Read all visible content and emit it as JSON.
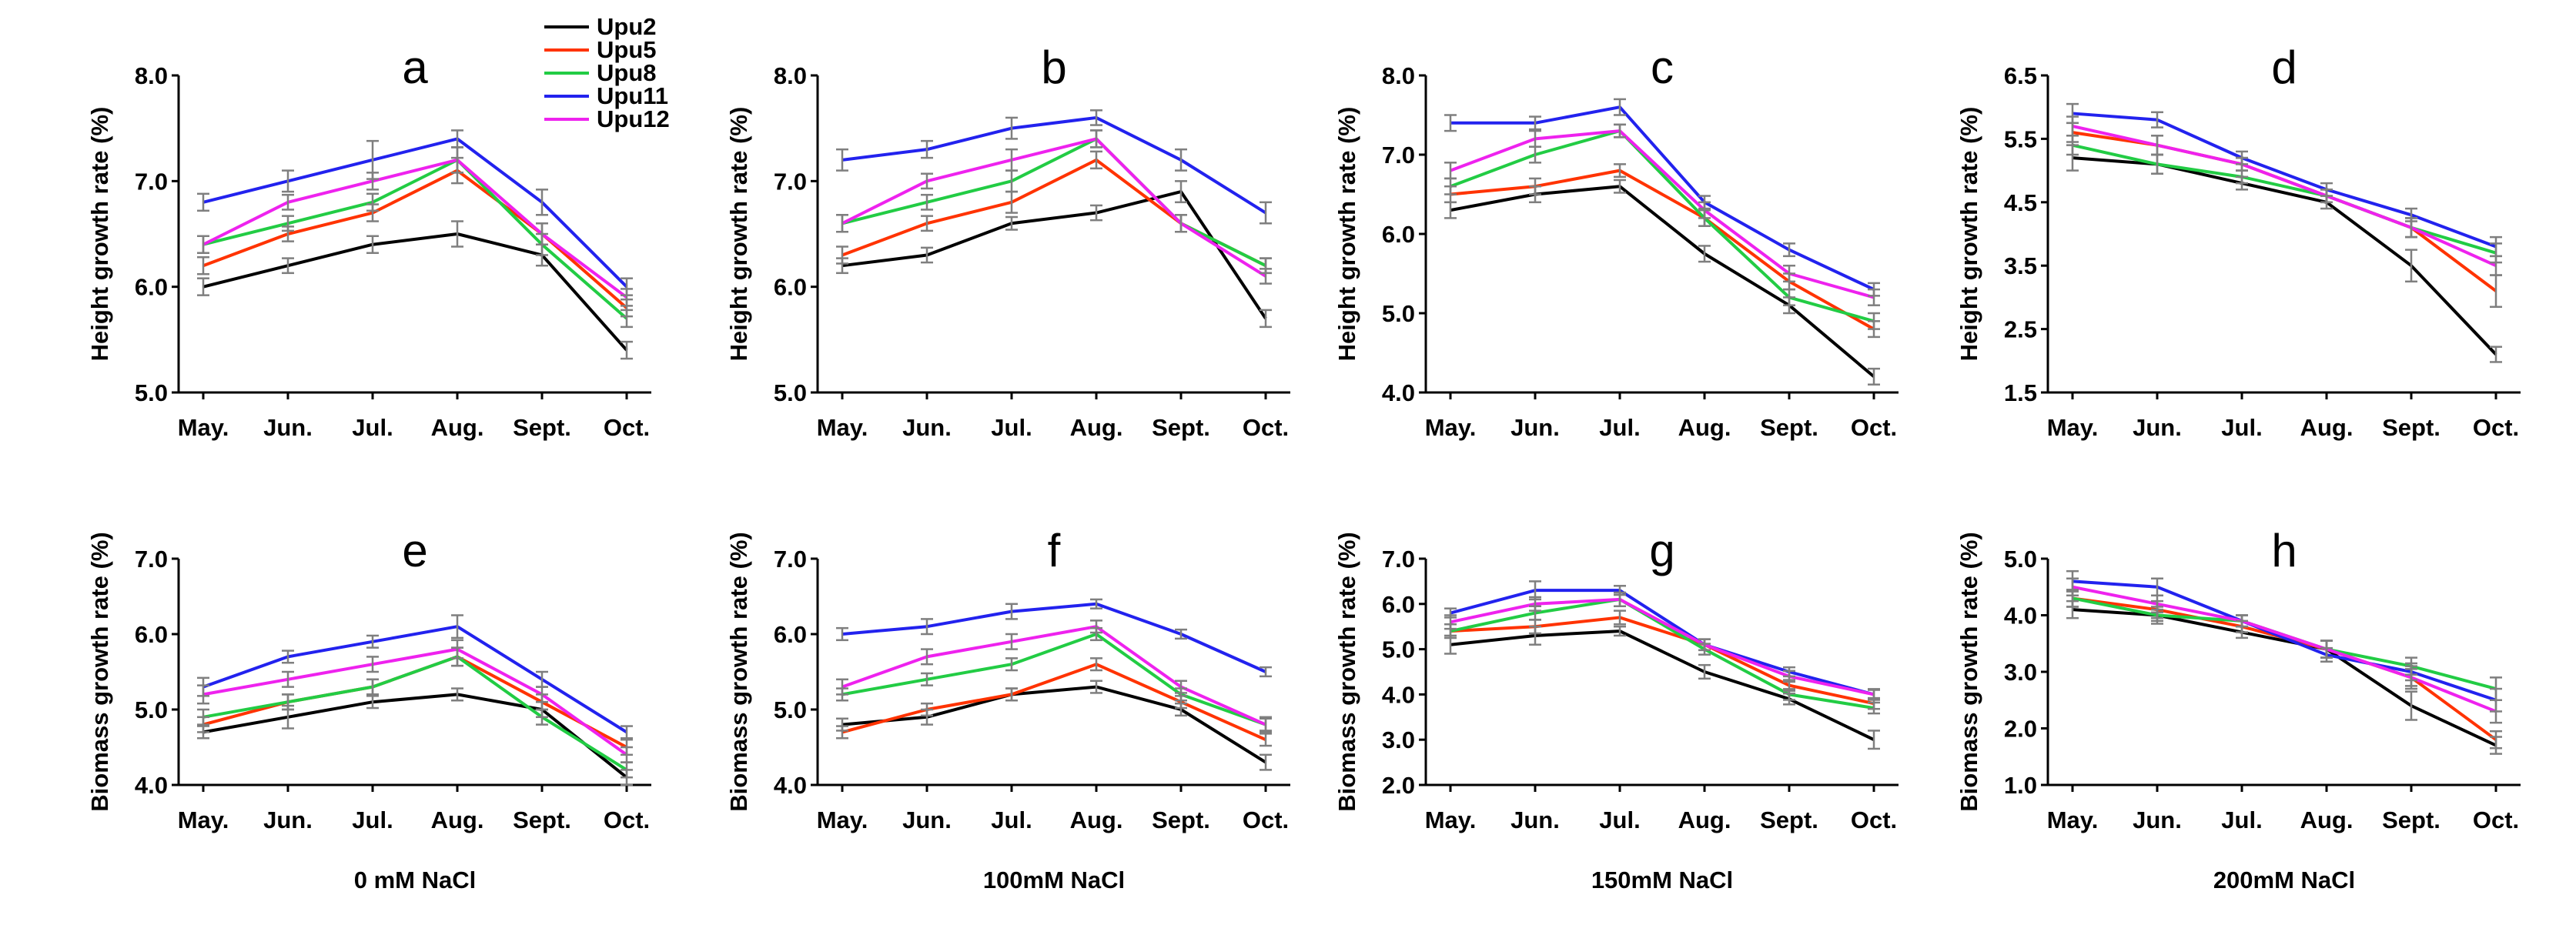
{
  "colors": {
    "Upu2": "#000000",
    "Upu5": "#ff3300",
    "Upu8": "#22cc44",
    "Upu11": "#2222ee",
    "Upu12": "#ee22ee",
    "error_bar": "#7f7f7f"
  },
  "legend": [
    "Upu2",
    "Upu5",
    "Upu8",
    "Upu11",
    "Upu12"
  ],
  "salt_labels": [
    "0 mM NaCl",
    "100mM NaCl",
    "150mM NaCl",
    "200mM NaCl"
  ],
  "chart_data": [
    {
      "type": "line",
      "letter": "a",
      "title": "a",
      "categories": [
        "May.",
        "Jun.",
        "Jul.",
        "Aug.",
        "Sept.",
        "Oct."
      ],
      "ylabel": "Height growth rate (%)",
      "ylim": [
        5.0,
        8.0
      ],
      "yticks": [
        "5.0",
        "6.0",
        "7.0",
        "8.0"
      ],
      "series": [
        {
          "name": "Upu2",
          "values": [
            6.0,
            6.2,
            6.4,
            6.5,
            6.3,
            5.4
          ],
          "err": [
            0.08,
            0.07,
            0.08,
            0.12,
            0.1,
            0.08
          ]
        },
        {
          "name": "Upu5",
          "values": [
            6.2,
            6.5,
            6.7,
            7.1,
            6.5,
            5.8
          ],
          "err": [
            0.08,
            0.07,
            0.08,
            0.12,
            0.1,
            0.08
          ]
        },
        {
          "name": "Upu8",
          "values": [
            6.4,
            6.6,
            6.8,
            7.2,
            6.4,
            5.7
          ],
          "err": [
            0.08,
            0.07,
            0.08,
            0.12,
            0.1,
            0.08
          ]
        },
        {
          "name": "Upu11",
          "values": [
            6.8,
            7.0,
            7.2,
            7.4,
            6.8,
            6.0
          ],
          "err": [
            0.08,
            0.1,
            0.18,
            0.08,
            0.12,
            0.08
          ]
        },
        {
          "name": "Upu12",
          "values": [
            6.4,
            6.8,
            7.0,
            7.2,
            6.5,
            5.9
          ],
          "err": [
            0.08,
            0.07,
            0.08,
            0.12,
            0.1,
            0.08
          ]
        }
      ]
    },
    {
      "type": "line",
      "letter": "b",
      "title": "b",
      "categories": [
        "May.",
        "Jun.",
        "Jul.",
        "Aug.",
        "Sept.",
        "Oct."
      ],
      "ylabel": "Height growth rate (%)",
      "ylim": [
        5.0,
        8.0
      ],
      "yticks": [
        "5.0",
        "6.0",
        "7.0",
        "8.0"
      ],
      "series": [
        {
          "name": "Upu2",
          "values": [
            6.2,
            6.3,
            6.6,
            6.7,
            6.9,
            5.7
          ],
          "err": [
            0.07,
            0.07,
            0.06,
            0.07,
            0.1,
            0.08
          ]
        },
        {
          "name": "Upu5",
          "values": [
            6.3,
            6.6,
            6.8,
            7.2,
            6.6,
            6.2
          ],
          "err": [
            0.08,
            0.07,
            0.1,
            0.08,
            0.08,
            0.07
          ]
        },
        {
          "name": "Upu8",
          "values": [
            6.6,
            6.8,
            7.0,
            7.4,
            6.6,
            6.2
          ],
          "err": [
            0.08,
            0.07,
            0.1,
            0.08,
            0.08,
            0.07
          ]
        },
        {
          "name": "Upu11",
          "values": [
            7.2,
            7.3,
            7.5,
            7.6,
            7.2,
            6.7
          ],
          "err": [
            0.1,
            0.08,
            0.1,
            0.07,
            0.1,
            0.1
          ]
        },
        {
          "name": "Upu12",
          "values": [
            6.6,
            7.0,
            7.2,
            7.4,
            6.6,
            6.1
          ],
          "err": [
            0.08,
            0.07,
            0.1,
            0.08,
            0.08,
            0.07
          ]
        }
      ]
    },
    {
      "type": "line",
      "letter": "c",
      "title": "c",
      "categories": [
        "May.",
        "Jun.",
        "Jul.",
        "Aug.",
        "Sept.",
        "Oct."
      ],
      "ylabel": "Height growth rate (%)",
      "ylim": [
        4.0,
        8.0
      ],
      "yticks": [
        "4.0",
        "5.0",
        "6.0",
        "7.0",
        "8.0"
      ],
      "series": [
        {
          "name": "Upu2",
          "values": [
            6.3,
            6.5,
            6.6,
            5.75,
            5.1,
            4.2
          ],
          "err": [
            0.1,
            0.1,
            0.08,
            0.1,
            0.1,
            0.1
          ]
        },
        {
          "name": "Upu5",
          "values": [
            6.5,
            6.6,
            6.8,
            6.2,
            5.4,
            4.8
          ],
          "err": [
            0.1,
            0.1,
            0.08,
            0.1,
            0.1,
            0.1
          ]
        },
        {
          "name": "Upu8",
          "values": [
            6.6,
            7.0,
            7.3,
            6.2,
            5.2,
            4.9
          ],
          "err": [
            0.1,
            0.1,
            0.08,
            0.1,
            0.1,
            0.1
          ]
        },
        {
          "name": "Upu11",
          "values": [
            7.4,
            7.4,
            7.6,
            6.4,
            5.8,
            5.3
          ],
          "err": [
            0.1,
            0.08,
            0.1,
            0.08,
            0.08,
            0.08
          ]
        },
        {
          "name": "Upu12",
          "values": [
            6.8,
            7.2,
            7.3,
            6.3,
            5.5,
            5.2
          ],
          "err": [
            0.1,
            0.1,
            0.08,
            0.1,
            0.1,
            0.1
          ]
        }
      ]
    },
    {
      "type": "line",
      "letter": "d",
      "title": "d",
      "categories": [
        "May.",
        "Jun.",
        "Jul.",
        "Aug.",
        "Sept.",
        "Oct."
      ],
      "ylabel": "Height growth rate (%)",
      "ylim": [
        1.5,
        6.5
      ],
      "yticks": [
        "1.5",
        "2.5",
        "3.5",
        "4.5",
        "5.5",
        "6.5"
      ],
      "series": [
        {
          "name": "Upu2",
          "values": [
            5.2,
            5.1,
            4.8,
            4.5,
            3.5,
            2.1
          ],
          "err": [
            0.2,
            0.15,
            0.1,
            0.1,
            0.25,
            0.12
          ]
        },
        {
          "name": "Upu5",
          "values": [
            5.6,
            5.4,
            5.1,
            4.6,
            4.1,
            3.1
          ],
          "err": [
            0.15,
            0.15,
            0.1,
            0.1,
            0.15,
            0.25
          ]
        },
        {
          "name": "Upu8",
          "values": [
            5.4,
            5.1,
            4.9,
            4.6,
            4.1,
            3.7
          ],
          "err": [
            0.15,
            0.15,
            0.1,
            0.1,
            0.15,
            0.15
          ]
        },
        {
          "name": "Upu11",
          "values": [
            5.9,
            5.8,
            5.2,
            4.7,
            4.3,
            3.8
          ],
          "err": [
            0.15,
            0.12,
            0.1,
            0.1,
            0.1,
            0.15
          ]
        },
        {
          "name": "Upu12",
          "values": [
            5.7,
            5.4,
            5.1,
            4.6,
            4.1,
            3.5
          ],
          "err": [
            0.15,
            0.15,
            0.1,
            0.1,
            0.15,
            0.15
          ]
        }
      ]
    },
    {
      "type": "line",
      "letter": "e",
      "title": "e",
      "categories": [
        "May.",
        "Jun.",
        "Jul.",
        "Aug.",
        "Sept.",
        "Oct."
      ],
      "ylabel": "Biomass  growth rate (%)",
      "ylim": [
        4.0,
        7.0
      ],
      "yticks": [
        "4.0",
        "5.0",
        "6.0",
        "7.0"
      ],
      "series": [
        {
          "name": "Upu2",
          "values": [
            4.7,
            4.9,
            5.1,
            5.2,
            5.0,
            4.1
          ],
          "err": [
            0.08,
            0.15,
            0.08,
            0.08,
            0.1,
            0.1
          ]
        },
        {
          "name": "Upu5",
          "values": [
            4.8,
            5.1,
            5.3,
            5.7,
            5.1,
            4.5
          ],
          "err": [
            0.1,
            0.1,
            0.1,
            0.12,
            0.1,
            0.1
          ]
        },
        {
          "name": "Upu8",
          "values": [
            4.9,
            5.1,
            5.3,
            5.7,
            4.9,
            4.2
          ],
          "err": [
            0.1,
            0.1,
            0.1,
            0.12,
            0.1,
            0.1
          ]
        },
        {
          "name": "Upu11",
          "values": [
            5.3,
            5.7,
            5.9,
            6.1,
            5.4,
            4.7
          ],
          "err": [
            0.12,
            0.08,
            0.08,
            0.15,
            0.1,
            0.08
          ]
        },
        {
          "name": "Upu12",
          "values": [
            5.2,
            5.4,
            5.6,
            5.8,
            5.2,
            4.4
          ],
          "err": [
            0.12,
            0.1,
            0.1,
            0.12,
            0.1,
            0.1
          ]
        }
      ]
    },
    {
      "type": "line",
      "letter": "f",
      "title": "f",
      "categories": [
        "May.",
        "Jun.",
        "Jul.",
        "Aug.",
        "Sept.",
        "Oct."
      ],
      "ylabel": "Biomass  growth rate (%)",
      "ylim": [
        4.0,
        7.0
      ],
      "yticks": [
        "4.0",
        "5.0",
        "6.0",
        "7.0"
      ],
      "series": [
        {
          "name": "Upu2",
          "values": [
            4.8,
            4.9,
            5.2,
            5.3,
            5.0,
            4.3
          ],
          "err": [
            0.08,
            0.1,
            0.08,
            0.08,
            0.08,
            0.1
          ]
        },
        {
          "name": "Upu5",
          "values": [
            4.7,
            5.0,
            5.2,
            5.6,
            5.1,
            4.6
          ],
          "err": [
            0.08,
            0.08,
            0.08,
            0.08,
            0.08,
            0.08
          ]
        },
        {
          "name": "Upu8",
          "values": [
            5.2,
            5.4,
            5.6,
            6.0,
            5.2,
            4.8
          ],
          "err": [
            0.08,
            0.08,
            0.08,
            0.08,
            0.08,
            0.08
          ]
        },
        {
          "name": "Upu11",
          "values": [
            6.0,
            6.1,
            6.3,
            6.4,
            6.0,
            5.5
          ],
          "err": [
            0.08,
            0.1,
            0.1,
            0.06,
            0.06,
            0.06
          ]
        },
        {
          "name": "Upu12",
          "values": [
            5.3,
            5.7,
            5.9,
            6.1,
            5.3,
            4.8
          ],
          "err": [
            0.1,
            0.1,
            0.1,
            0.08,
            0.08,
            0.1
          ]
        }
      ]
    },
    {
      "type": "line",
      "letter": "g",
      "title": "g",
      "categories": [
        "May.",
        "Jun.",
        "Jul.",
        "Aug.",
        "Sept.",
        "Oct."
      ],
      "ylabel": "Biomass  growth rate (%)",
      "ylim": [
        2.0,
        7.0
      ],
      "yticks": [
        "2.0",
        "3.0",
        "4.0",
        "5.0",
        "6.0",
        "7.0"
      ],
      "series": [
        {
          "name": "Upu2",
          "values": [
            5.1,
            5.3,
            5.4,
            4.5,
            3.9,
            3.0
          ],
          "err": [
            0.2,
            0.2,
            0.1,
            0.15,
            0.12,
            0.2
          ]
        },
        {
          "name": "Upu5",
          "values": [
            5.4,
            5.5,
            5.7,
            5.1,
            4.2,
            3.8
          ],
          "err": [
            0.15,
            0.15,
            0.15,
            0.12,
            0.12,
            0.12
          ]
        },
        {
          "name": "Upu8",
          "values": [
            5.4,
            5.8,
            6.1,
            5.0,
            4.0,
            3.7
          ],
          "err": [
            0.15,
            0.15,
            0.15,
            0.12,
            0.12,
            0.12
          ]
        },
        {
          "name": "Upu11",
          "values": [
            5.8,
            6.3,
            6.3,
            5.1,
            4.5,
            4.0
          ],
          "err": [
            0.1,
            0.2,
            0.1,
            0.12,
            0.1,
            0.1
          ]
        },
        {
          "name": "Upu12",
          "values": [
            5.6,
            6.0,
            6.1,
            5.1,
            4.4,
            4.0
          ],
          "err": [
            0.15,
            0.15,
            0.15,
            0.12,
            0.12,
            0.12
          ]
        }
      ]
    },
    {
      "type": "line",
      "letter": "h",
      "title": "h",
      "categories": [
        "May.",
        "Jun.",
        "Jul.",
        "Aug.",
        "Sept.",
        "Oct."
      ],
      "ylabel": "Biomass  growth rate (%)",
      "ylim": [
        1.0,
        5.0
      ],
      "yticks": [
        "1.0",
        "2.0",
        "3.0",
        "4.0",
        "5.0"
      ],
      "series": [
        {
          "name": "Upu2",
          "values": [
            4.1,
            4.0,
            3.7,
            3.4,
            2.4,
            1.7
          ],
          "err": [
            0.15,
            0.1,
            0.1,
            0.15,
            0.25,
            0.15
          ]
        },
        {
          "name": "Upu5",
          "values": [
            4.3,
            4.1,
            3.8,
            3.4,
            2.9,
            1.8
          ],
          "err": [
            0.15,
            0.15,
            0.1,
            0.15,
            0.2,
            0.15
          ]
        },
        {
          "name": "Upu8",
          "values": [
            4.3,
            4.0,
            3.9,
            3.4,
            3.1,
            2.7
          ],
          "err": [
            0.15,
            0.15,
            0.1,
            0.15,
            0.15,
            0.2
          ]
        },
        {
          "name": "Upu11",
          "values": [
            4.6,
            4.5,
            3.9,
            3.3,
            3.0,
            2.5
          ],
          "err": [
            0.18,
            0.15,
            0.1,
            0.12,
            0.15,
            0.2
          ]
        },
        {
          "name": "Upu12",
          "values": [
            4.5,
            4.2,
            3.9,
            3.4,
            2.9,
            2.3
          ],
          "err": [
            0.15,
            0.15,
            0.1,
            0.15,
            0.15,
            0.2
          ]
        }
      ]
    }
  ]
}
